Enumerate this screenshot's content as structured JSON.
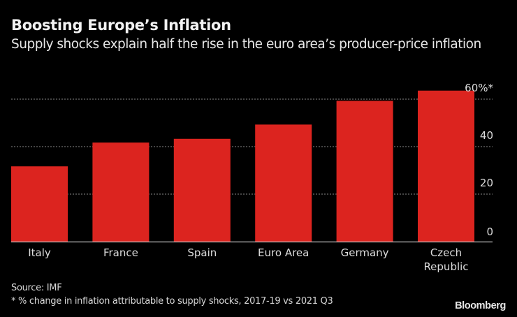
{
  "header": {
    "title": "Boosting Europe’s Inflation",
    "subtitle": "Supply shocks explain half the rise in the euro area’s producer-price inflation"
  },
  "footer": {
    "source": "Source: IMF",
    "footnote": "* % change in inflation attributable to supply shocks, 2017-19 vs 2021 Q3",
    "brand": "Bloomberg"
  },
  "colors": {
    "bar": "#dc241f",
    "background": "#000000",
    "text": "#e6e6e6",
    "grid": "#8a8a8a"
  },
  "chart_data": {
    "type": "bar",
    "title": "Boosting Europe’s Inflation",
    "subtitle": "Supply shocks explain half the rise in the euro area’s producer-price inflation",
    "categories": [
      [
        "Italy"
      ],
      [
        "France"
      ],
      [
        "Spain"
      ],
      [
        "Euro Area"
      ],
      [
        "Germany"
      ],
      [
        "Czech",
        "Republic"
      ]
    ],
    "values": [
      31.7,
      41.7,
      43.3,
      49.3,
      59.3,
      63.6
    ],
    "xlabel": "",
    "ylabel": "% change in inflation attributable to supply shocks",
    "ylim": [
      0,
      60
    ],
    "yticks": [
      0,
      20,
      40,
      60
    ],
    "ytick_labels": [
      "0",
      "20",
      "40",
      "60%*"
    ],
    "y_axis_side": "right",
    "grid": true,
    "legend": "none"
  }
}
